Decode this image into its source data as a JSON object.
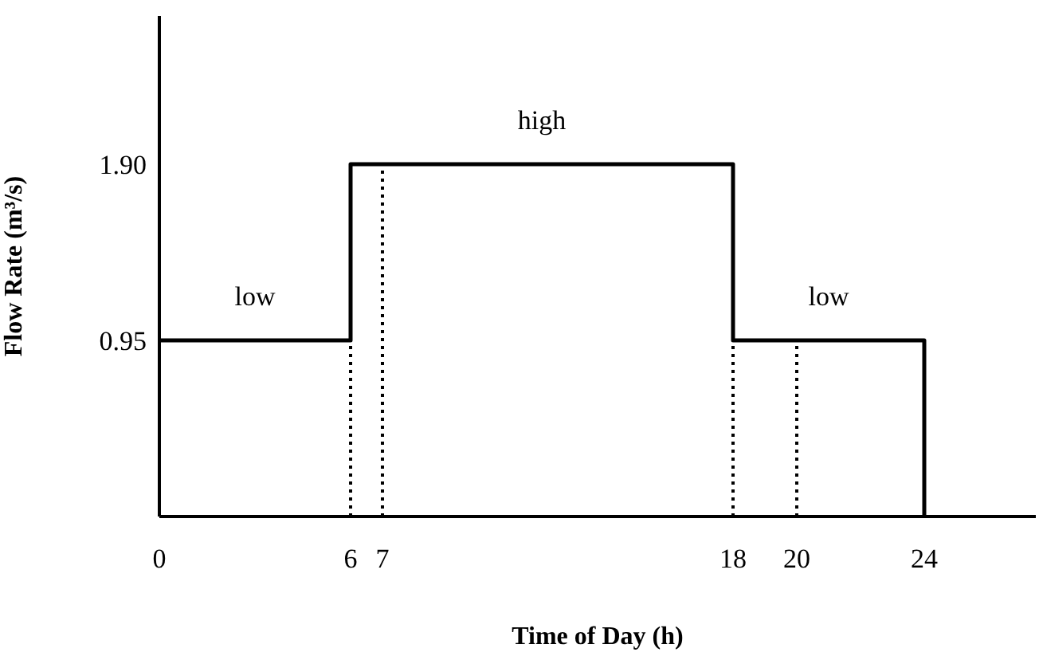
{
  "chart_data": {
    "type": "step",
    "xlabel": "Time of Day (h)",
    "ylabel": "Flow Rate (m³/s)",
    "x": [
      0,
      6,
      18,
      24
    ],
    "series": [
      {
        "color": "#000000",
        "values": [
          0.95,
          1.9,
          0.95,
          0
        ],
        "line_style": "solid"
      }
    ],
    "xlim": [
      0,
      27.5
    ],
    "ylim": [
      0,
      2.7
    ],
    "xticks": [
      0,
      6,
      7,
      18,
      20,
      24
    ],
    "yticks": [
      {
        "value": 0.95,
        "label": "0.95"
      },
      {
        "value": 1.9,
        "label": "1.90"
      }
    ],
    "ref_lines": [
      {
        "axis": "x",
        "value": 6,
        "color": "#000000",
        "line_style": "dotted"
      },
      {
        "axis": "x",
        "value": 7,
        "color": "#000000",
        "line_style": "dotted"
      },
      {
        "axis": "x",
        "value": 18,
        "color": "#000000",
        "line_style": "dotted"
      },
      {
        "axis": "x",
        "value": 20,
        "color": "#000000",
        "line_style": "dotted"
      }
    ],
    "annotations": [
      "low",
      "high",
      "low"
    ],
    "marker": "none"
  }
}
